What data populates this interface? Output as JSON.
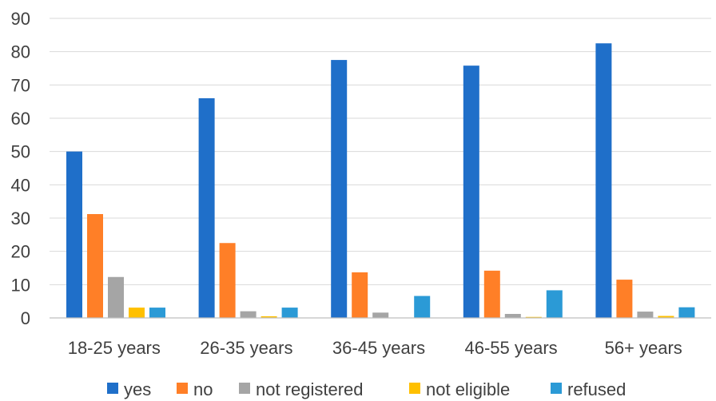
{
  "chart_data": {
    "type": "bar",
    "title": "",
    "xlabel": "",
    "ylabel": "",
    "ylim": [
      0,
      90
    ],
    "yticks": [
      0,
      10,
      20,
      30,
      40,
      50,
      60,
      70,
      80,
      90
    ],
    "grid": true,
    "legend_position": "bottom",
    "categories": [
      "18-25 years",
      "26-35 years",
      "36-45 years",
      "46-55 years",
      "56+ years"
    ],
    "series": [
      {
        "name": "yes",
        "color": "#1f6fc9",
        "values": [
          50.0,
          66.0,
          77.5,
          75.8,
          82.5
        ]
      },
      {
        "name": "no",
        "color": "#ff7f27",
        "values": [
          31.2,
          22.5,
          13.7,
          14.2,
          11.5
        ]
      },
      {
        "name": "not registered",
        "color": "#a5a5a5",
        "values": [
          12.3,
          2.0,
          1.6,
          1.2,
          1.9
        ]
      },
      {
        "name": "not eligible",
        "color": "#ffc000",
        "values": [
          3.1,
          0.5,
          0.1,
          0.3,
          0.6
        ]
      },
      {
        "name": "refused",
        "color": "#2b9ad6",
        "values": [
          3.1,
          3.1,
          6.6,
          8.3,
          3.2
        ]
      }
    ]
  }
}
